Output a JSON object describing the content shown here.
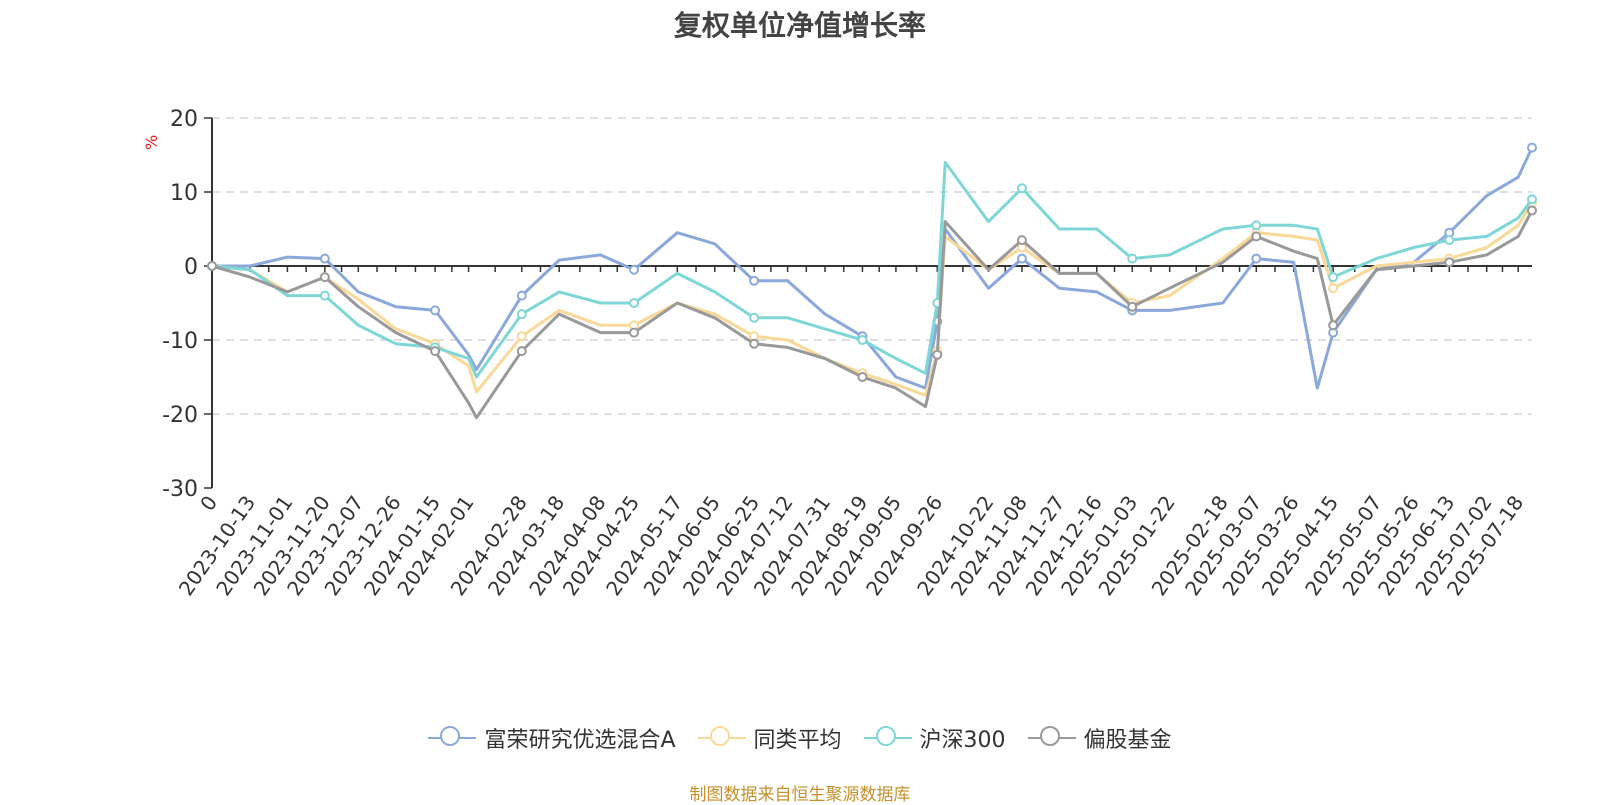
{
  "chart_data": {
    "type": "line",
    "title": "复权单位净值增长率",
    "ylabel": "%",
    "ylim": [
      -30,
      20
    ],
    "yticks": [
      20,
      10,
      0,
      -10,
      -20,
      -30
    ],
    "grid": true,
    "legend_position": "bottom",
    "x_tick_labels": [
      "2023-10-13",
      "2023-11-01",
      "2023-11-20",
      "2023-12-07",
      "2023-12-26",
      "2024-01-15",
      "2024-02-01",
      "2024-02-28",
      "2024-03-18",
      "2024-04-08",
      "2024-04-25",
      "2024-05-17",
      "2024-06-05",
      "2024-06-25",
      "2024-07-12",
      "2024-07-31",
      "2024-08-19",
      "2024-09-05",
      "2024-09-26",
      "2024-10-22",
      "2024-11-08",
      "2024-11-27",
      "2024-12-16",
      "2025-01-03",
      "2025-01-22",
      "2025-02-18",
      "2025-03-07",
      "2025-03-26",
      "2025-04-15",
      "2025-05-07",
      "2025-05-26",
      "2025-06-13",
      "2025-07-02",
      "2025-07-18"
    ],
    "x_origin_label": "0",
    "x": [
      "0",
      "2023-10-13",
      "2023-11-01",
      "2023-11-20",
      "2023-12-07",
      "2023-12-26",
      "2024-01-15",
      "2024-02-01",
      "2024-02-05",
      "2024-02-28",
      "2024-03-18",
      "2024-04-08",
      "2024-04-25",
      "2024-05-17",
      "2024-06-05",
      "2024-06-25",
      "2024-07-12",
      "2024-07-31",
      "2024-08-19",
      "2024-09-05",
      "2024-09-20",
      "2024-09-26",
      "2024-09-30",
      "2024-10-22",
      "2024-11-08",
      "2024-11-27",
      "2024-12-16",
      "2025-01-03",
      "2025-01-22",
      "2025-02-18",
      "2025-03-07",
      "2025-03-26",
      "2025-04-07",
      "2025-04-15",
      "2025-05-07",
      "2025-05-26",
      "2025-06-13",
      "2025-07-02",
      "2025-07-18",
      "2025-07-25"
    ],
    "series": [
      {
        "name": "富荣研究优选混合A",
        "color": "#8aa8db",
        "values": [
          0,
          0,
          1.2,
          1.0,
          -3.5,
          -5.5,
          -6.0,
          -12.0,
          -14.0,
          -4.0,
          0.8,
          1.5,
          -0.5,
          4.5,
          3.0,
          -2.0,
          -2.0,
          -6.5,
          -9.5,
          -15.0,
          -16.5,
          -7.5,
          5.0,
          -3.0,
          1.0,
          -3.0,
          -3.5,
          -6.0,
          -6.0,
          -5.0,
          1.0,
          0.5,
          -16.5,
          -9.0,
          -0.5,
          0.5,
          4.5,
          9.5,
          12.0,
          16.0
        ]
      },
      {
        "name": "同类平均",
        "color": "#f9d898",
        "values": [
          0,
          -0.5,
          -3.5,
          -1.5,
          -4.5,
          -8.5,
          -10.5,
          -13.5,
          -17.0,
          -9.5,
          -6.0,
          -8.0,
          -8.0,
          -5.0,
          -6.5,
          -9.5,
          -10.0,
          -12.5,
          -14.5,
          -16.0,
          -17.5,
          -11.5,
          4.0,
          -0.5,
          2.5,
          -1.0,
          -1.0,
          -5.0,
          -4.0,
          1.0,
          4.5,
          4.0,
          3.5,
          -3.0,
          0.0,
          0.5,
          1.0,
          2.5,
          5.5,
          8.5
        ]
      },
      {
        "name": "沪深300",
        "color": "#7fd6d6",
        "values": [
          0,
          -0.5,
          -4.0,
          -4.0,
          -8.0,
          -10.5,
          -11.0,
          -12.5,
          -15.0,
          -6.5,
          -3.5,
          -5.0,
          -5.0,
          -1.0,
          -3.5,
          -7.0,
          -7.0,
          -8.5,
          -10.0,
          -12.5,
          -14.5,
          -5.0,
          14.0,
          6.0,
          10.5,
          5.0,
          5.0,
          1.0,
          1.5,
          5.0,
          5.5,
          5.5,
          5.0,
          -1.5,
          1.0,
          2.5,
          3.5,
          4.0,
          6.5,
          9.0
        ]
      },
      {
        "name": "偏股基金",
        "color": "#999999",
        "values": [
          0,
          -1.5,
          -3.5,
          -1.5,
          -5.5,
          -9.0,
          -11.5,
          -18.5,
          -20.5,
          -11.5,
          -6.5,
          -9.0,
          -9.0,
          -5.0,
          -7.0,
          -10.5,
          -11.0,
          -12.5,
          -15.0,
          -16.5,
          -19.0,
          -12.0,
          6.0,
          -0.5,
          3.5,
          -1.0,
          -1.0,
          -5.5,
          -3.0,
          0.5,
          4.0,
          2.0,
          1.0,
          -8.0,
          -0.5,
          0.0,
          0.5,
          1.5,
          4.0,
          7.5
        ]
      }
    ]
  },
  "source_note": "制图数据来自恒生聚源数据库"
}
